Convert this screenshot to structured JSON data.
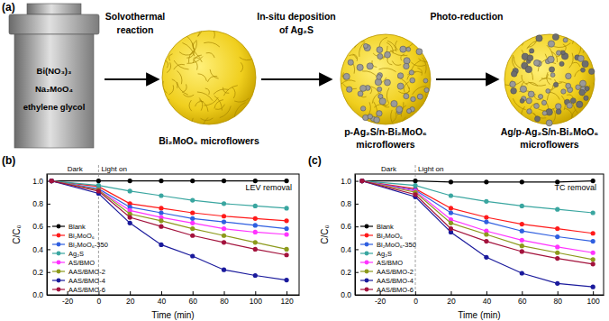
{
  "diagram": {
    "panel_label": "(a)",
    "reactants": [
      "Bi(NO₃)₃",
      "Na₂MoO₄",
      "ethylene glycol"
    ],
    "steps": [
      [
        "Solvothermal",
        "reaction"
      ],
      [
        "In-situ deposition",
        "of Ag₂S"
      ],
      [
        "Photo-reduction"
      ]
    ],
    "products": [
      [
        "Bi₂MoO₆ microflowers"
      ],
      [
        "p-Ag₂S/n-Bi₂MoO₆",
        "microflowers"
      ],
      [
        "Ag/p-Ag₂S/n-Bi₂MoO₆",
        "microflowers"
      ]
    ]
  },
  "chart_data": [
    {
      "type": "line",
      "panel_label": "(b)",
      "title": "LEV removal",
      "x_label": "Time (min)",
      "y_label": "C/C₀",
      "annotations": [
        {
          "text": "Dark",
          "x": -15
        },
        {
          "text": "Light on",
          "x": 0
        }
      ],
      "x": [
        -30,
        0,
        20,
        40,
        60,
        80,
        100,
        120
      ],
      "xlim": [
        -33,
        128
      ],
      "xticks": [
        -20,
        0,
        20,
        40,
        60,
        80,
        100,
        120
      ],
      "ylim": [
        0,
        1.06
      ],
      "yticks": [
        {
          "value": 0,
          "label": "0.0"
        },
        {
          "value": 0.2,
          "label": "0.2"
        },
        {
          "value": 0.4,
          "label": "0.4"
        },
        {
          "value": 0.6,
          "label": "0.6"
        },
        {
          "value": 0.8,
          "label": "0.8"
        },
        {
          "value": 1,
          "label": "1.0"
        }
      ],
      "grid": false,
      "legend": "lower left",
      "marker": "circle",
      "line_style": "solid",
      "series": [
        {
          "name": "Blank",
          "color": "#000000",
          "values": [
            1.0,
            1.0,
            1.0,
            1.0,
            1.0,
            1.0,
            1.0,
            1.0
          ]
        },
        {
          "name": "Bi₂MoO₆",
          "color": "#ff1a1a",
          "values": [
            1.0,
            0.95,
            0.8,
            0.76,
            0.72,
            0.69,
            0.67,
            0.65
          ]
        },
        {
          "name": "Bi₂MoO₆-350",
          "color": "#2f5fe0",
          "values": [
            1.0,
            0.93,
            0.77,
            0.72,
            0.67,
            0.64,
            0.61,
            0.58
          ]
        },
        {
          "name": "Ag₂S",
          "color": "#3aa6a0",
          "values": [
            1.0,
            0.96,
            0.91,
            0.87,
            0.83,
            0.8,
            0.78,
            0.76
          ]
        },
        {
          "name": "AS/BMO",
          "color": "#ff33ff",
          "values": [
            1.0,
            0.92,
            0.74,
            0.68,
            0.63,
            0.58,
            0.55,
            0.53
          ]
        },
        {
          "name": "AAS/BMO-2",
          "color": "#8c9a1c",
          "values": [
            1.0,
            0.92,
            0.71,
            0.65,
            0.58,
            0.52,
            0.46,
            0.4
          ]
        },
        {
          "name": "AAS/BMO-4",
          "color": "#1a1a9c",
          "values": [
            1.0,
            0.89,
            0.63,
            0.44,
            0.34,
            0.22,
            0.17,
            0.13
          ]
        },
        {
          "name": "AAS/BMO-6",
          "color": "#a3123c",
          "values": [
            1.0,
            0.91,
            0.68,
            0.6,
            0.52,
            0.46,
            0.4,
            0.35
          ]
        }
      ]
    },
    {
      "type": "line",
      "panel_label": "(c)",
      "title": "TC removal",
      "x_label": "Time (min)",
      "y_label": "C/C₀",
      "annotations": [
        {
          "text": "Dark",
          "x": -15
        },
        {
          "text": "Light on",
          "x": 0
        }
      ],
      "x": [
        -30,
        0,
        20,
        40,
        60,
        80,
        100
      ],
      "xlim": [
        -34,
        106
      ],
      "xticks": [
        -20,
        0,
        20,
        40,
        60,
        80,
        100
      ],
      "ylim": [
        0,
        1.06
      ],
      "yticks": [
        {
          "value": 0,
          "label": "0.0"
        },
        {
          "value": 0.2,
          "label": "0.2"
        },
        {
          "value": 0.4,
          "label": "0.4"
        },
        {
          "value": 0.6,
          "label": "0.6"
        },
        {
          "value": 0.8,
          "label": "0.8"
        },
        {
          "value": 1,
          "label": "1.0"
        }
      ],
      "grid": false,
      "legend": "lower left",
      "marker": "circle",
      "line_style": "solid",
      "series": [
        {
          "name": "Blank",
          "color": "#000000",
          "values": [
            1.0,
            1.0,
            0.99,
            0.99,
            0.99,
            0.99,
            1.0
          ]
        },
        {
          "name": "Bi₂MoO₆",
          "color": "#ff1a1a",
          "values": [
            1.0,
            0.93,
            0.76,
            0.68,
            0.62,
            0.58,
            0.54
          ]
        },
        {
          "name": "Bi₂MoO₆-350",
          "color": "#2f5fe0",
          "values": [
            1.0,
            0.92,
            0.72,
            0.64,
            0.56,
            0.51,
            0.47
          ]
        },
        {
          "name": "Ag₂S",
          "color": "#3aa6a0",
          "values": [
            1.0,
            0.96,
            0.87,
            0.82,
            0.78,
            0.75,
            0.72
          ]
        },
        {
          "name": "AS/BMO",
          "color": "#ff33ff",
          "values": [
            1.0,
            0.91,
            0.66,
            0.56,
            0.48,
            0.42,
            0.37
          ]
        },
        {
          "name": "AAS/BMO-2",
          "color": "#8c9a1c",
          "values": [
            1.0,
            0.9,
            0.63,
            0.53,
            0.43,
            0.37,
            0.31
          ]
        },
        {
          "name": "AAS/BMO-4",
          "color": "#1a1a9c",
          "values": [
            1.0,
            0.86,
            0.55,
            0.33,
            0.19,
            0.1,
            0.07
          ]
        },
        {
          "name": "AAS/BMO-6",
          "color": "#a3123c",
          "values": [
            1.0,
            0.88,
            0.58,
            0.47,
            0.38,
            0.32,
            0.27
          ]
        }
      ]
    }
  ]
}
